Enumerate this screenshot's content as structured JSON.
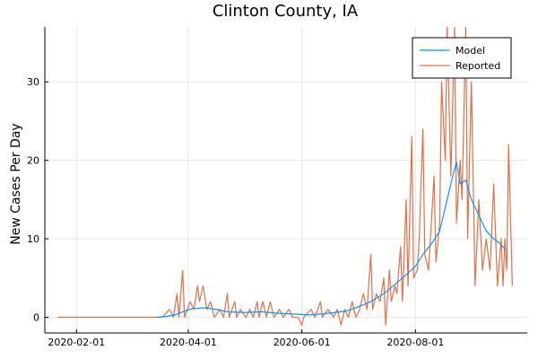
{
  "chart_data": {
    "type": "line",
    "title": "Clinton County, IA",
    "xlabel": "",
    "ylabel": "New Cases Per Day",
    "x_ticks": [
      "2020-02-01",
      "2020-04-01",
      "2020-06-01",
      "2020-08-01"
    ],
    "y_ticks": [
      0,
      10,
      20,
      30
    ],
    "xlim": [
      "2020-01-15",
      "2020-09-30"
    ],
    "ylim": [
      -2,
      37
    ],
    "grid": true,
    "legend_position": "top-right",
    "series": [
      {
        "name": "Model",
        "color": "#009AFA",
        "points": [
          [
            "2020-03-15",
            0.0
          ],
          [
            "2020-03-20",
            0.1
          ],
          [
            "2020-03-25",
            0.3
          ],
          [
            "2020-03-30",
            0.8
          ],
          [
            "2020-04-03",
            1.1
          ],
          [
            "2020-04-10",
            1.2
          ],
          [
            "2020-04-16",
            1.0
          ],
          [
            "2020-04-22",
            0.7
          ],
          [
            "2020-05-01",
            0.6
          ],
          [
            "2020-05-10",
            0.7
          ],
          [
            "2020-05-20",
            0.5
          ],
          [
            "2020-05-28",
            0.4
          ],
          [
            "2020-06-05",
            0.3
          ],
          [
            "2020-06-15",
            0.5
          ],
          [
            "2020-06-25",
            0.8
          ],
          [
            "2020-07-01",
            1.3
          ],
          [
            "2020-07-08",
            2.0
          ],
          [
            "2020-07-15",
            3.0
          ],
          [
            "2020-07-20",
            4.0
          ],
          [
            "2020-07-25",
            5.0
          ],
          [
            "2020-08-01",
            6.5
          ],
          [
            "2020-08-05",
            8.0
          ],
          [
            "2020-08-10",
            9.5
          ],
          [
            "2020-08-14",
            11.0
          ],
          [
            "2020-08-18",
            15.0
          ],
          [
            "2020-08-21",
            18.0
          ],
          [
            "2020-08-23",
            19.8
          ],
          [
            "2020-08-25",
            17.0
          ],
          [
            "2020-08-28",
            17.5
          ],
          [
            "2020-08-31",
            15.0
          ],
          [
            "2020-09-04",
            13.0
          ],
          [
            "2020-09-08",
            11.0
          ],
          [
            "2020-09-12",
            10.0
          ],
          [
            "2020-09-15",
            9.5
          ],
          [
            "2020-09-18",
            8.7
          ]
        ]
      },
      {
        "name": "Reported",
        "color": "#E26F46",
        "points": [
          [
            "2020-01-22",
            0
          ],
          [
            "2020-03-10",
            0
          ],
          [
            "2020-03-18",
            0
          ],
          [
            "2020-03-22",
            1
          ],
          [
            "2020-03-24",
            0
          ],
          [
            "2020-03-26",
            3
          ],
          [
            "2020-03-27",
            0
          ],
          [
            "2020-03-29",
            6
          ],
          [
            "2020-03-30",
            0
          ],
          [
            "2020-04-02",
            2
          ],
          [
            "2020-04-04",
            1
          ],
          [
            "2020-04-06",
            4
          ],
          [
            "2020-04-07",
            2
          ],
          [
            "2020-04-09",
            4
          ],
          [
            "2020-04-11",
            1
          ],
          [
            "2020-04-13",
            2
          ],
          [
            "2020-04-15",
            0
          ],
          [
            "2020-04-18",
            1
          ],
          [
            "2020-04-20",
            0
          ],
          [
            "2020-04-22",
            3
          ],
          [
            "2020-04-23",
            0
          ],
          [
            "2020-04-26",
            2
          ],
          [
            "2020-04-27",
            0
          ],
          [
            "2020-04-29",
            1
          ],
          [
            "2020-05-02",
            0
          ],
          [
            "2020-05-04",
            1
          ],
          [
            "2020-05-06",
            0
          ],
          [
            "2020-05-08",
            2
          ],
          [
            "2020-05-09",
            0
          ],
          [
            "2020-05-11",
            2
          ],
          [
            "2020-05-12",
            1
          ],
          [
            "2020-05-13",
            0
          ],
          [
            "2020-05-15",
            2
          ],
          [
            "2020-05-17",
            0
          ],
          [
            "2020-05-20",
            1
          ],
          [
            "2020-05-22",
            0
          ],
          [
            "2020-05-25",
            1
          ],
          [
            "2020-05-27",
            0
          ],
          [
            "2020-05-30",
            0
          ],
          [
            "2020-06-01",
            -1
          ],
          [
            "2020-06-02",
            0
          ],
          [
            "2020-06-06",
            1
          ],
          [
            "2020-06-08",
            0
          ],
          [
            "2020-06-11",
            2
          ],
          [
            "2020-06-12",
            0
          ],
          [
            "2020-06-15",
            1
          ],
          [
            "2020-06-18",
            0
          ],
          [
            "2020-06-20",
            1
          ],
          [
            "2020-06-22",
            -1
          ],
          [
            "2020-06-24",
            1
          ],
          [
            "2020-06-26",
            0
          ],
          [
            "2020-06-28",
            2
          ],
          [
            "2020-06-30",
            0
          ],
          [
            "2020-07-02",
            1
          ],
          [
            "2020-07-04",
            3
          ],
          [
            "2020-07-06",
            1
          ],
          [
            "2020-07-08",
            8
          ],
          [
            "2020-07-09",
            1
          ],
          [
            "2020-07-11",
            3
          ],
          [
            "2020-07-13",
            2
          ],
          [
            "2020-07-15",
            5
          ],
          [
            "2020-07-16",
            -1
          ],
          [
            "2020-07-18",
            6
          ],
          [
            "2020-07-19",
            2
          ],
          [
            "2020-07-21",
            4
          ],
          [
            "2020-07-22",
            3
          ],
          [
            "2020-07-24",
            9
          ],
          [
            "2020-07-25",
            2
          ],
          [
            "2020-07-27",
            15
          ],
          [
            "2020-07-28",
            4
          ],
          [
            "2020-07-30",
            23
          ],
          [
            "2020-07-31",
            5
          ],
          [
            "2020-08-02",
            6
          ],
          [
            "2020-08-03",
            10
          ],
          [
            "2020-08-05",
            24
          ],
          [
            "2020-08-06",
            8
          ],
          [
            "2020-08-08",
            6
          ],
          [
            "2020-08-09",
            10
          ],
          [
            "2020-08-11",
            18
          ],
          [
            "2020-08-12",
            7
          ],
          [
            "2020-08-14",
            12
          ],
          [
            "2020-08-15",
            30
          ],
          [
            "2020-08-17",
            20
          ],
          [
            "2020-08-18",
            37
          ],
          [
            "2020-08-20",
            18
          ],
          [
            "2020-08-22",
            37
          ],
          [
            "2020-08-23",
            12
          ],
          [
            "2020-08-25",
            20
          ],
          [
            "2020-08-26",
            15
          ],
          [
            "2020-08-28",
            37
          ],
          [
            "2020-08-29",
            10
          ],
          [
            "2020-08-31",
            30
          ],
          [
            "2020-09-02",
            4
          ],
          [
            "2020-09-04",
            15
          ],
          [
            "2020-09-06",
            6
          ],
          [
            "2020-09-08",
            10
          ],
          [
            "2020-09-10",
            6
          ],
          [
            "2020-09-12",
            17
          ],
          [
            "2020-09-14",
            4
          ],
          [
            "2020-09-16",
            10
          ],
          [
            "2020-09-17",
            4
          ],
          [
            "2020-09-18",
            10
          ],
          [
            "2020-09-19",
            6
          ],
          [
            "2020-09-20",
            22
          ],
          [
            "2020-09-22",
            4
          ]
        ]
      }
    ]
  }
}
